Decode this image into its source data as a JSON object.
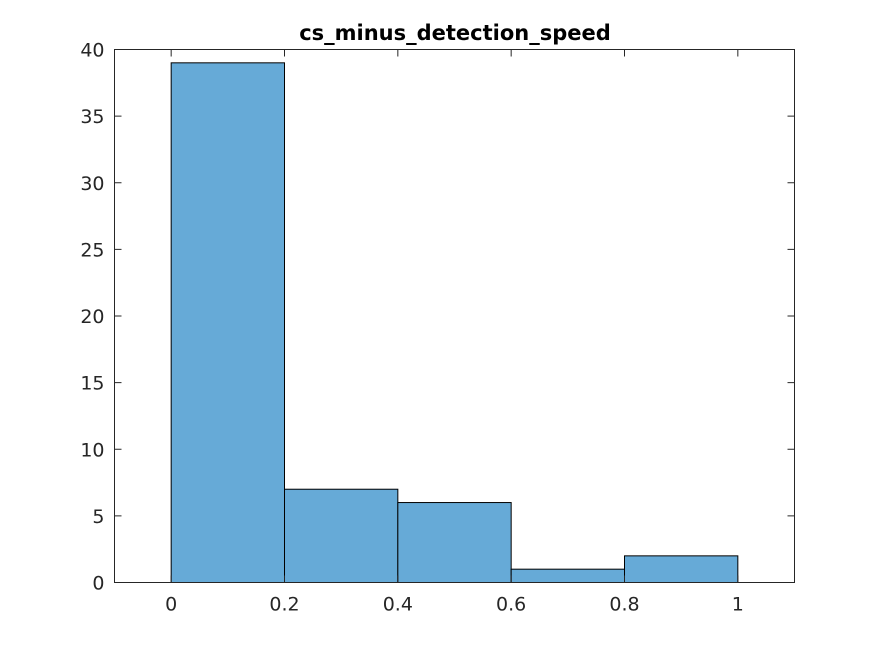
{
  "chart_data": {
    "type": "bar",
    "title": "cs_minus_detection_speed",
    "xlabel": "",
    "ylabel": "",
    "bin_edges": [
      0,
      0.2,
      0.4,
      0.6,
      0.8,
      1
    ],
    "values": [
      39,
      7,
      6,
      1,
      2
    ],
    "xlim": [
      -0.1,
      1.1
    ],
    "ylim": [
      0,
      40
    ],
    "xticks": [
      0,
      0.2,
      0.4,
      0.6,
      0.8,
      1
    ],
    "xtick_labels": [
      "0",
      "0.2",
      "0.4",
      "0.6",
      "0.8",
      "1"
    ],
    "yticks": [
      0,
      5,
      10,
      15,
      20,
      25,
      30,
      35,
      40
    ],
    "ytick_labels": [
      "0",
      "5",
      "10",
      "15",
      "20",
      "25",
      "30",
      "35",
      "40"
    ],
    "bar_color": "#66aad7",
    "edge_color": "#000000",
    "grid": false,
    "box": true
  }
}
